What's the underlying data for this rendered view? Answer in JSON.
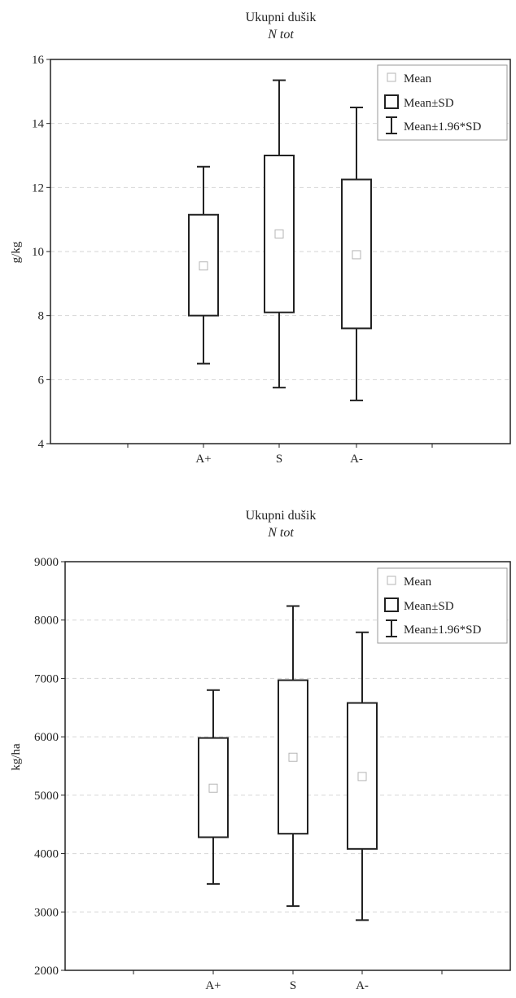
{
  "chart_data": [
    {
      "type": "box",
      "title": "Ukupni dušik",
      "subtitle": "N tot",
      "xlabel": "",
      "ylabel": "g/kg",
      "ylim": [
        4,
        16
      ],
      "yticks": [
        "4",
        "6",
        "8",
        "10",
        "12",
        "14",
        "16"
      ],
      "categories": [
        "A+",
        "S",
        "A-"
      ],
      "grid": true,
      "legend_position": "top-right",
      "legend": [
        "Mean",
        "Mean±SD",
        "Mean±1.96*SD"
      ],
      "boxes": [
        {
          "category": "A+",
          "mean": 9.55,
          "sd_low": 8.0,
          "sd_high": 11.15,
          "whisker_low": 6.5,
          "whisker_high": 12.65
        },
        {
          "category": "S",
          "mean": 10.55,
          "sd_low": 8.1,
          "sd_high": 13.0,
          "whisker_low": 5.75,
          "whisker_high": 15.35
        },
        {
          "category": "A-",
          "mean": 9.9,
          "sd_low": 7.6,
          "sd_high": 12.25,
          "whisker_low": 5.35,
          "whisker_high": 14.5
        }
      ]
    },
    {
      "type": "box",
      "title": "Ukupni dušik",
      "subtitle": "N tot",
      "xlabel": "",
      "ylabel": "kg/ha",
      "ylim": [
        2000,
        9000
      ],
      "yticks": [
        "2000",
        "3000",
        "4000",
        "5000",
        "6000",
        "7000",
        "8000",
        "9000"
      ],
      "categories": [
        "A+",
        "S",
        "A-"
      ],
      "grid": true,
      "legend_position": "top-right",
      "legend": [
        "Mean",
        "Mean±SD",
        "Mean±1.96*SD"
      ],
      "boxes": [
        {
          "category": "A+",
          "mean": 5120,
          "sd_low": 4280,
          "sd_high": 5980,
          "whisker_low": 3480,
          "whisker_high": 6800
        },
        {
          "category": "S",
          "mean": 5650,
          "sd_low": 4340,
          "sd_high": 6970,
          "whisker_low": 3100,
          "whisker_high": 8240
        },
        {
          "category": "A-",
          "mean": 5320,
          "sd_low": 4080,
          "sd_high": 6580,
          "whisker_low": 2860,
          "whisker_high": 7790
        }
      ]
    }
  ]
}
